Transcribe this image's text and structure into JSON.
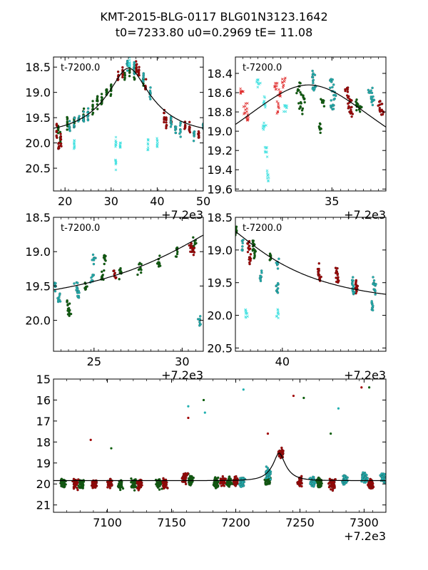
{
  "title_line1": "KMT-2015-BLG-0117 BLG01N3123.1642",
  "title_line2": "t0=7233.80 u0=0.2969 tE=  11.08",
  "fit": {
    "t0": 7233.8,
    "u0": 0.2969,
    "tE": 11.08,
    "mag_base": 19.84,
    "mag_peak": 18.52
  },
  "colors": {
    "dark_green": "#0b5e0b",
    "dark_red": "#a00000",
    "teal": "#20b0b0",
    "cyan": "#40e0e0",
    "red": "#e03030",
    "green": "#20a020",
    "curve": "#000000"
  },
  "chart_data": [
    {
      "type": "scatter",
      "panel": "top-left",
      "annotation": "t-7200.0",
      "offset_label": "+7.2e3",
      "xlim": [
        17.5,
        50
      ],
      "ylim": [
        20.95,
        18.3
      ],
      "xticks": [
        "20",
        "30",
        "40",
        "50"
      ],
      "xtick_values": [
        20,
        30,
        40,
        50
      ],
      "yticks": [
        "18.5",
        "19.0",
        "19.5",
        "20.0",
        "20.5"
      ],
      "ytick_values": [
        18.5,
        19.0,
        19.5,
        20.0,
        20.5
      ],
      "series": [
        {
          "name": "dark_green",
          "values": [
            [
              18.5,
              19.7
            ],
            [
              19.0,
              19.9
            ],
            [
              20.5,
              19.6
            ],
            [
              22,
              19.55
            ],
            [
              24,
              19.45
            ],
            [
              26,
              19.3
            ],
            [
              27,
              19.2
            ],
            [
              28,
              19.15
            ],
            [
              29,
              19.0
            ],
            [
              30,
              18.95
            ],
            [
              33,
              18.6
            ],
            [
              34,
              18.55
            ],
            [
              35,
              18.65
            ],
            [
              37,
              18.8
            ]
          ]
        },
        {
          "name": "dark_red",
          "values": [
            [
              18.2,
              19.8
            ],
            [
              18.6,
              20.1
            ],
            [
              19.1,
              19.95
            ],
            [
              31.5,
              18.7
            ],
            [
              32.5,
              18.6
            ],
            [
              35.5,
              18.5
            ],
            [
              36,
              18.6
            ],
            [
              37.5,
              18.9
            ],
            [
              41.5,
              19.5
            ],
            [
              42,
              19.6
            ],
            [
              43,
              19.55
            ],
            [
              46,
              19.65
            ],
            [
              47,
              19.7
            ],
            [
              49,
              19.85
            ]
          ]
        },
        {
          "name": "teal",
          "values": [
            [
              21,
              19.7
            ],
            [
              22,
              19.6
            ],
            [
              23,
              19.55
            ],
            [
              24,
              19.5
            ],
            [
              25,
              19.45
            ],
            [
              33.5,
              18.45
            ],
            [
              35,
              18.5
            ],
            [
              37,
              18.7
            ],
            [
              38.5,
              19.0
            ],
            [
              43,
              19.6
            ],
            [
              44,
              19.7
            ],
            [
              45,
              19.75
            ],
            [
              48,
              19.8
            ],
            [
              50,
              19.7
            ]
          ]
        },
        {
          "name": "cyan_x",
          "values": [
            [
              22,
              20.0
            ],
            [
              31,
              20.0
            ],
            [
              32,
              20.0
            ],
            [
              34,
              18.4
            ],
            [
              31,
              20.4
            ],
            [
              38,
              20.0
            ],
            [
              40,
              20.0
            ]
          ]
        }
      ],
      "curve": "pspl"
    },
    {
      "type": "scatter",
      "panel": "top-right",
      "annotation": "t-7200.0",
      "offset_label": "+7.2e3",
      "xlim": [
        30,
        37.8
      ],
      "ylim": [
        19.62,
        18.23
      ],
      "xticks": [
        "35"
      ],
      "xtick_values": [
        35
      ],
      "yticks": [
        "18.4",
        "18.6",
        "18.8",
        "19.0",
        "19.2",
        "19.4",
        "19.6"
      ],
      "ytick_values": [
        18.4,
        18.6,
        18.8,
        19.0,
        19.2,
        19.4,
        19.6
      ],
      "series": [
        {
          "name": "red_x",
          "values": [
            [
              30.3,
              18.6
            ],
            [
              30.5,
              18.75
            ],
            [
              30.6,
              18.85
            ],
            [
              32.1,
              18.55
            ],
            [
              32.3,
              18.6
            ],
            [
              32.5,
              18.5
            ],
            [
              32.2,
              18.75
            ]
          ]
        },
        {
          "name": "cyan_x",
          "values": [
            [
              31.2,
              18.5
            ],
            [
              31.5,
              18.7
            ],
            [
              31.5,
              18.95
            ],
            [
              31.6,
              19.2
            ],
            [
              31.7,
              19.45
            ],
            [
              32.6,
              18.75
            ]
          ]
        },
        {
          "name": "dark_green",
          "values": [
            [
              33.3,
              18.55
            ],
            [
              33.5,
              18.65
            ],
            [
              33.4,
              18.75
            ],
            [
              34.5,
              18.7
            ],
            [
              34.4,
              18.95
            ],
            [
              36.3,
              18.7
            ],
            [
              36.5,
              18.75
            ]
          ]
        },
        {
          "name": "teal",
          "values": [
            [
              34.0,
              18.45
            ],
            [
              34.1,
              18.55
            ],
            [
              35.0,
              18.5
            ],
            [
              35.1,
              18.6
            ],
            [
              35.0,
              18.75
            ],
            [
              37.0,
              18.6
            ],
            [
              37.1,
              18.7
            ]
          ]
        },
        {
          "name": "dark_red",
          "values": [
            [
              35.8,
              18.6
            ],
            [
              35.9,
              18.7
            ],
            [
              36.0,
              18.8
            ],
            [
              37.5,
              18.75
            ],
            [
              37.6,
              18.8
            ]
          ]
        }
      ],
      "curve": "pspl"
    },
    {
      "type": "scatter",
      "panel": "middle-left",
      "annotation": "t-7200.0",
      "offset_label": "+7.2e3",
      "xlim": [
        22.7,
        31.2
      ],
      "ylim": [
        20.45,
        18.5
      ],
      "xticks": [
        "25",
        "30"
      ],
      "xtick_values": [
        25,
        30
      ],
      "yticks": [
        "18.5",
        "19.0",
        "19.5",
        "20.0"
      ],
      "ytick_values": [
        18.5,
        19.0,
        19.5,
        20.0
      ],
      "series": [
        {
          "name": "teal",
          "values": [
            [
              22.8,
              19.5
            ],
            [
              23.0,
              19.7
            ],
            [
              24,
              19.5
            ],
            [
              24.1,
              19.6
            ],
            [
              24.9,
              19.4
            ],
            [
              25.0,
              19.1
            ],
            [
              31.0,
              20.0
            ]
          ]
        },
        {
          "name": "dark_green",
          "values": [
            [
              23.5,
              19.8
            ],
            [
              23.6,
              19.9
            ],
            [
              24.5,
              19.5
            ],
            [
              25.5,
              19.35
            ],
            [
              25.6,
              19.1
            ],
            [
              26.5,
              19.3
            ],
            [
              27.6,
              19.25
            ],
            [
              28.7,
              19.15
            ],
            [
              29.7,
              19.0
            ],
            [
              30.7,
              18.85
            ]
          ]
        },
        {
          "name": "dark_red",
          "values": [
            [
              26.2,
              19.35
            ],
            [
              30.5,
              18.9
            ],
            [
              30.6,
              19.0
            ]
          ]
        }
      ],
      "curve": "pspl"
    },
    {
      "type": "scatter",
      "panel": "middle-right",
      "annotation": "t-7200.0",
      "offset_label": "+7.2e3",
      "xlim": [
        36.1,
        48.6
      ],
      "ylim": [
        20.55,
        18.5
      ],
      "xticks": [
        "40"
      ],
      "xtick_values": [
        40
      ],
      "yticks": [
        "18.5",
        "19.0",
        "19.5",
        "20.0",
        "20.5"
      ],
      "ytick_values": [
        18.5,
        19.0,
        19.5,
        20.0,
        20.5
      ],
      "series": [
        {
          "name": "dark_green",
          "values": [
            [
              36.2,
              18.7
            ],
            [
              37.6,
              18.95
            ],
            [
              37.7,
              19.05
            ],
            [
              39.0,
              19.1
            ]
          ]
        },
        {
          "name": "dark_red",
          "values": [
            [
              37.2,
              18.95
            ],
            [
              37.3,
              19.1
            ],
            [
              43.0,
              19.3
            ],
            [
              43.1,
              19.4
            ],
            [
              44.5,
              19.35
            ],
            [
              44.6,
              19.45
            ],
            [
              46.1,
              19.55
            ],
            [
              46.2,
              19.6
            ]
          ]
        },
        {
          "name": "teal",
          "values": [
            [
              36.7,
              18.9
            ],
            [
              38.2,
              19.4
            ],
            [
              39.6,
              19.2
            ],
            [
              39.6,
              19.6
            ],
            [
              45.8,
              19.5
            ],
            [
              45.9,
              19.6
            ],
            [
              47.6,
              19.5
            ],
            [
              47.7,
              19.6
            ],
            [
              47.5,
              19.9
            ]
          ]
        },
        {
          "name": "cyan_x",
          "values": [
            [
              37.0,
              20.0
            ],
            [
              39.6,
              20.0
            ]
          ]
        }
      ],
      "curve": "pspl"
    },
    {
      "type": "scatter",
      "panel": "bottom",
      "offset_label": "+7.2e3",
      "xlim": [
        7058,
        7317
      ],
      "ylim": [
        21.35,
        15
      ],
      "xticks": [
        "7100",
        "7150",
        "7200",
        "7250",
        "7300"
      ],
      "xtick_values": [
        7100,
        7150,
        7200,
        7250,
        7300
      ],
      "yticks": [
        "15",
        "16",
        "17",
        "18",
        "19",
        "20",
        "21"
      ],
      "ytick_values": [
        15,
        16,
        17,
        18,
        19,
        20,
        21
      ],
      "series": [
        {
          "name": "dark_green",
          "values": [
            [
              7065,
              20.0
            ],
            [
              7080,
              20.0
            ],
            [
              7110,
              20.0
            ],
            [
              7120,
              20.0
            ],
            [
              7140,
              20.0
            ],
            [
              7165,
              19.8
            ],
            [
              7185,
              19.95
            ],
            [
              7195,
              19.9
            ],
            [
              7225,
              19.8
            ],
            [
              7265,
              19.95
            ]
          ]
        },
        {
          "name": "dark_red",
          "values": [
            [
              7075,
              20.0
            ],
            [
              7090,
              20.0
            ],
            [
              7102,
              20.0
            ],
            [
              7125,
              20.0
            ],
            [
              7145,
              20.0
            ],
            [
              7160,
              19.7
            ],
            [
              7190,
              19.9
            ],
            [
              7200,
              19.9
            ],
            [
              7235,
              18.55
            ],
            [
              7250,
              19.9
            ],
            [
              7275,
              20.0
            ],
            [
              7305,
              20.0
            ]
          ]
        },
        {
          "name": "teal",
          "values": [
            [
              7205,
              19.9
            ],
            [
              7225,
              19.5
            ],
            [
              7260,
              19.9
            ],
            [
              7285,
              19.8
            ],
            [
              7300,
              19.7
            ],
            [
              7315,
              19.7
            ]
          ]
        }
      ],
      "outliers": [
        [
          7087,
          17.9
        ],
        [
          7103,
          18.3
        ],
        [
          7163,
          16.3
        ],
        [
          7163,
          16.85
        ],
        [
          7175,
          16.0
        ],
        [
          7176,
          16.6
        ],
        [
          7245,
          15.8
        ],
        [
          7253,
          15.9
        ],
        [
          7280,
          16.4
        ],
        [
          7298,
          15.4
        ],
        [
          7304,
          15.4
        ],
        [
          7206,
          15.5
        ],
        [
          7225,
          17.6
        ],
        [
          7274,
          17.6
        ]
      ],
      "curve": "pspl"
    }
  ]
}
